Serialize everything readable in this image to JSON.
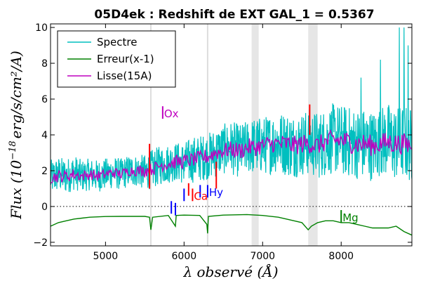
{
  "chart_data": {
    "type": "line",
    "title": "05D4ek : Redshift de EXT GAL_1 = 0.5367",
    "xlabel": "λ observé (Å)",
    "ylabel_prefix": "Flux (10",
    "ylabel_exponent": "−18",
    "ylabel_suffix": "erg/s/cm²/A)",
    "xlim": [
      4300,
      8900
    ],
    "ylim": [
      -2.2,
      10.2
    ],
    "x_ticks": [
      5000,
      6000,
      7000,
      8000
    ],
    "y_ticks": [
      -2,
      0,
      2,
      4,
      6,
      8,
      10
    ],
    "zero_line": {
      "y": 0,
      "style": "dotted"
    },
    "vertical_lines": [
      5577,
      6300
    ],
    "shaded_bands": [
      [
        6860,
        6950
      ],
      [
        7580,
        7700
      ]
    ],
    "legend_position": "top-left",
    "series": [
      {
        "name": "Spectre",
        "color": "#00bfbf",
        "x": [
          4300,
          4400,
          4500,
          4600,
          4700,
          4800,
          4900,
          5000,
          5100,
          5200,
          5300,
          5400,
          5500,
          5600,
          5700,
          5800,
          5900,
          6000,
          6100,
          6200,
          6300,
          6400,
          6500,
          6600,
          6700,
          6800,
          6900,
          7000,
          7100,
          7200,
          7300,
          7400,
          7500,
          7600,
          7700,
          7800,
          7900,
          8000,
          8100,
          8200,
          8300,
          8400,
          8500,
          8600,
          8700,
          8800,
          8900
        ],
        "y": [
          1.6,
          1.8,
          1.7,
          1.9,
          1.7,
          1.8,
          1.7,
          1.8,
          1.9,
          1.8,
          2.0,
          2.0,
          1.9,
          2.1,
          2.3,
          2.4,
          2.5,
          2.4,
          2.6,
          2.7,
          2.8,
          3.0,
          3.2,
          3.3,
          3.1,
          3.3,
          3.4,
          3.4,
          3.5,
          3.6,
          3.5,
          3.4,
          3.5,
          3.6,
          3.4,
          3.6,
          3.8,
          3.7,
          3.6,
          3.5,
          3.5,
          3.4,
          3.6,
          3.7,
          3.5,
          3.6,
          3.4
        ],
        "noise": [
          1.0,
          1.0,
          1.0,
          1.0,
          0.9,
          0.9,
          0.9,
          0.9,
          0.9,
          0.9,
          0.9,
          0.9,
          1.0,
          1.1,
          1.1,
          1.1,
          1.1,
          1.2,
          1.3,
          1.3,
          1.3,
          1.4,
          1.4,
          1.5,
          1.5,
          1.5,
          1.6,
          1.6,
          1.7,
          1.7,
          1.8,
          1.8,
          1.8,
          1.9,
          1.9,
          1.9,
          2.0,
          2.0,
          2.0,
          2.0,
          2.0,
          2.0,
          2.0,
          2.1,
          2.1,
          2.1,
          2.1
        ],
        "spikes": [
          [
            8250,
            7.2
          ],
          [
            8500,
            8.2
          ],
          [
            8740,
            10.0
          ],
          [
            8800,
            10.0
          ],
          [
            8850,
            9.0
          ]
        ]
      },
      {
        "name": "Erreur(x-1)",
        "color": "#008000",
        "x": [
          4300,
          4400,
          4500,
          4600,
          4700,
          4800,
          4900,
          5000,
          5200,
          5400,
          5500,
          5560,
          5577,
          5600,
          5800,
          5890,
          5900,
          6000,
          6200,
          6290,
          6300,
          6310,
          6500,
          6800,
          7000,
          7200,
          7400,
          7500,
          7580,
          7620,
          7700,
          7800,
          7900,
          8000,
          8100,
          8200,
          8300,
          8400,
          8500,
          8600,
          8700,
          8800,
          8900
        ],
        "y": [
          -1.1,
          -0.9,
          -0.8,
          -0.7,
          -0.65,
          -0.6,
          -0.58,
          -0.56,
          -0.55,
          -0.55,
          -0.55,
          -0.6,
          -1.3,
          -0.6,
          -0.5,
          -1.1,
          -0.5,
          -0.48,
          -0.5,
          -1.0,
          -1.5,
          -0.55,
          -0.48,
          -0.45,
          -0.5,
          -0.6,
          -0.8,
          -0.9,
          -1.3,
          -1.1,
          -0.9,
          -0.8,
          -0.8,
          -0.9,
          -0.9,
          -1.0,
          -1.1,
          -1.2,
          -1.2,
          -1.2,
          -1.1,
          -1.4,
          -1.6
        ]
      },
      {
        "name": "Lisse(15A)",
        "color": "#bf00bf",
        "x": [
          4300,
          4400,
          4500,
          4600,
          4700,
          4800,
          4900,
          5000,
          5100,
          5200,
          5300,
          5400,
          5500,
          5600,
          5700,
          5800,
          5900,
          6000,
          6100,
          6200,
          6300,
          6400,
          6500,
          6600,
          6700,
          6800,
          6900,
          7000,
          7100,
          7200,
          7300,
          7400,
          7500,
          7600,
          7700,
          7800,
          7900,
          8000,
          8100,
          8200,
          8300,
          8400,
          8500,
          8600,
          8700,
          8800,
          8900
        ],
        "y": [
          1.6,
          1.7,
          1.7,
          1.8,
          1.7,
          1.8,
          1.7,
          1.8,
          1.9,
          1.8,
          2.0,
          2.0,
          2.0,
          2.1,
          2.3,
          2.4,
          2.5,
          2.5,
          2.6,
          2.7,
          2.8,
          3.0,
          3.1,
          3.2,
          3.1,
          3.3,
          3.3,
          3.4,
          3.5,
          3.5,
          3.5,
          3.4,
          3.5,
          3.5,
          3.4,
          3.6,
          3.7,
          3.7,
          3.6,
          3.5,
          3.5,
          3.4,
          3.5,
          3.6,
          3.5,
          3.5,
          3.4
        ],
        "noise": [
          0.35,
          0.35,
          0.35,
          0.35,
          0.3,
          0.3,
          0.3,
          0.3,
          0.3,
          0.3,
          0.3,
          0.3,
          0.35,
          0.35,
          0.35,
          0.4,
          0.4,
          0.4,
          0.4,
          0.4,
          0.45,
          0.45,
          0.45,
          0.45,
          0.5,
          0.5,
          0.5,
          0.5,
          0.5,
          0.5,
          0.55,
          0.55,
          0.55,
          0.55,
          0.55,
          0.55,
          0.6,
          0.6,
          0.6,
          0.6,
          0.6,
          0.6,
          0.6,
          0.6,
          0.6,
          0.6,
          0.6
        ]
      }
    ],
    "line_markers": [
      {
        "label": "Ox",
        "x": 5728,
        "y_from": 4.9,
        "y_to": 5.6,
        "color": "#bf00bf",
        "show_label": true
      },
      {
        "label": "Hy",
        "x": 6300,
        "y_from": 0.5,
        "y_to": 1.2,
        "color": "#0000ff",
        "show_label": true
      },
      {
        "label": "",
        "x": 6205,
        "y_from": 0.5,
        "y_to": 1.2,
        "color": "#0000ff",
        "show_label": false
      },
      {
        "label": "",
        "x": 6000,
        "y_from": 0.3,
        "y_to": 1.0,
        "color": "#0000ff",
        "show_label": false
      },
      {
        "label": "",
        "x": 5838,
        "y_from": -0.4,
        "y_to": 0.3,
        "color": "#0000ff",
        "show_label": false
      },
      {
        "label": "",
        "x": 5890,
        "y_from": -0.5,
        "y_to": 0.2,
        "color": "#0000ff",
        "show_label": false
      },
      {
        "label": "Ca",
        "x": 6108,
        "y_from": 0.3,
        "y_to": 1.0,
        "color": "#ff0000",
        "show_label": true
      },
      {
        "label": "",
        "x": 6058,
        "y_from": 0.6,
        "y_to": 1.3,
        "color": "#ff0000",
        "show_label": false
      },
      {
        "label": "",
        "x": 5560,
        "y_from": 1.0,
        "y_to": 3.5,
        "color": "#ff0000",
        "show_label": false
      },
      {
        "label": "",
        "x": 6410,
        "y_from": 1.0,
        "y_to": 2.5,
        "color": "#ff0000",
        "show_label": false
      },
      {
        "label": "",
        "x": 7599,
        "y_from": 4.0,
        "y_to": 5.7,
        "color": "#ff0000",
        "show_label": false
      },
      {
        "label": "Mg",
        "x": 8000,
        "y_from": -0.9,
        "y_to": -0.2,
        "color": "#008000",
        "show_label": true
      }
    ]
  }
}
